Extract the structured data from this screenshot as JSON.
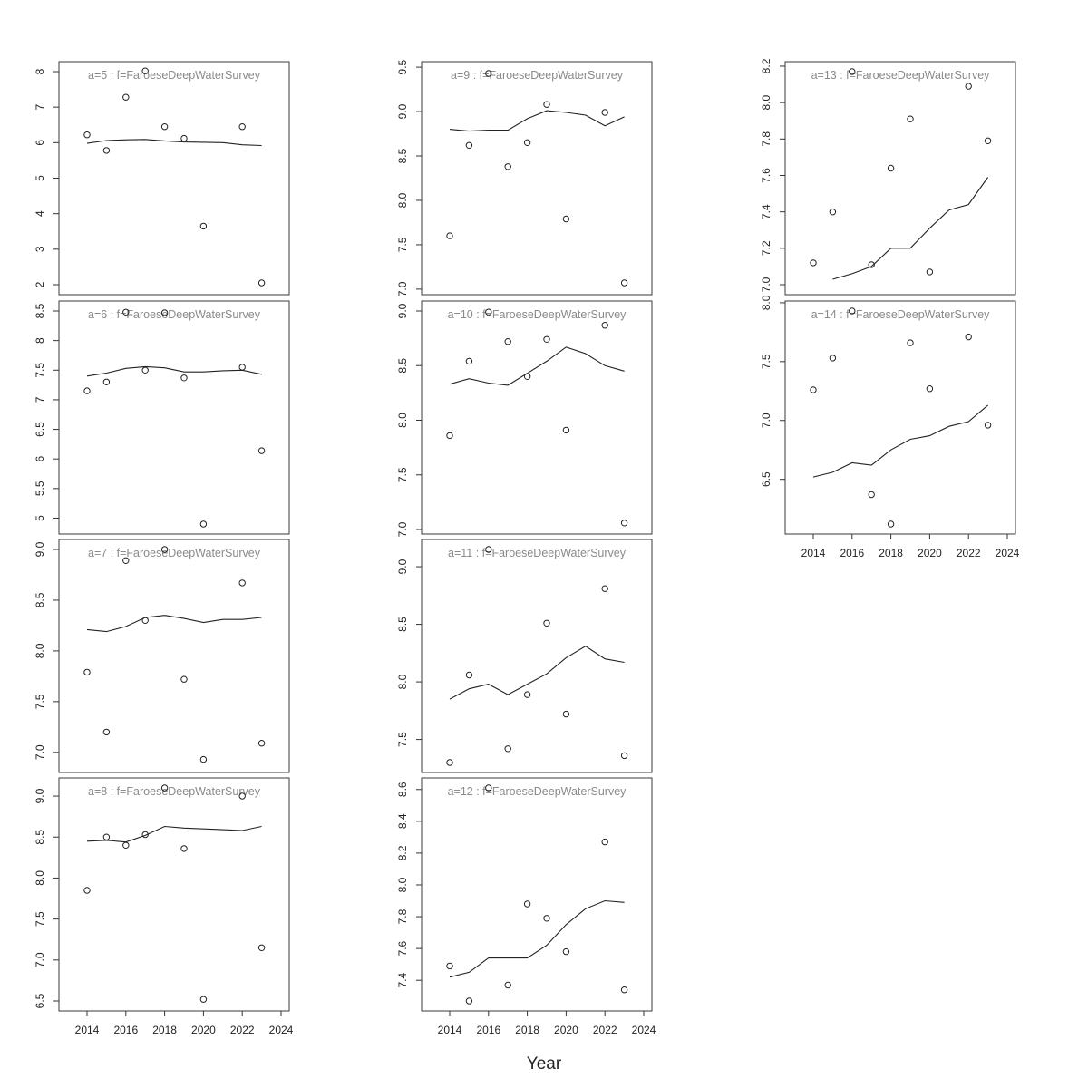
{
  "chart_data": {
    "type": "scatter",
    "xlabel": "Year",
    "panels": [
      {
        "label": "a=5  :  f=FaroeseDeepWaterSurvey",
        "ylim": [
          2,
          8
        ],
        "yticks": [
          2,
          3,
          4,
          5,
          6,
          7,
          8
        ],
        "show_xaxis": false,
        "points": [
          [
            2014,
            6.22
          ],
          [
            2015,
            5.78
          ],
          [
            2016,
            7.28
          ],
          [
            2017,
            8.02
          ],
          [
            2018,
            6.45
          ],
          [
            2019,
            6.12
          ],
          [
            2020,
            3.65
          ],
          [
            2022,
            6.45
          ],
          [
            2023,
            2.05
          ]
        ],
        "fit": [
          [
            2014,
            5.98
          ],
          [
            2015,
            6.06
          ],
          [
            2016,
            6.08
          ],
          [
            2017,
            6.09
          ],
          [
            2018,
            6.05
          ],
          [
            2019,
            6.02
          ],
          [
            2020,
            6.01
          ],
          [
            2021,
            6.0
          ],
          [
            2022,
            5.94
          ],
          [
            2023,
            5.92
          ]
        ]
      },
      {
        "label": "a=6  :  f=FaroeseDeepWaterSurvey",
        "ylim": [
          4.9,
          8.5
        ],
        "yticks": [
          5.0,
          5.5,
          6.0,
          6.5,
          7.0,
          7.5,
          8.0,
          8.5
        ],
        "show_xaxis": false,
        "points": [
          [
            2014,
            7.15
          ],
          [
            2015,
            7.3
          ],
          [
            2016,
            8.48
          ],
          [
            2017,
            7.5
          ],
          [
            2018,
            8.47
          ],
          [
            2019,
            7.37
          ],
          [
            2020,
            4.9
          ],
          [
            2022,
            7.55
          ],
          [
            2023,
            6.14
          ]
        ],
        "fit": [
          [
            2014,
            7.4
          ],
          [
            2015,
            7.45
          ],
          [
            2016,
            7.53
          ],
          [
            2017,
            7.56
          ],
          [
            2018,
            7.54
          ],
          [
            2019,
            7.47
          ],
          [
            2020,
            7.47
          ],
          [
            2021,
            7.49
          ],
          [
            2022,
            7.5
          ],
          [
            2023,
            7.43
          ]
        ]
      },
      {
        "label": "a=7  :  f=FaroeseDeepWaterSurvey",
        "ylim": [
          6.9,
          9.0
        ],
        "yticks": [
          7.0,
          7.5,
          8.0,
          8.5,
          9.0
        ],
        "show_xaxis": false,
        "points": [
          [
            2014,
            7.79
          ],
          [
            2015,
            7.2
          ],
          [
            2016,
            8.89
          ],
          [
            2017,
            8.3
          ],
          [
            2018,
            9.0
          ],
          [
            2019,
            7.72
          ],
          [
            2020,
            6.93
          ],
          [
            2022,
            8.67
          ],
          [
            2023,
            7.09
          ]
        ],
        "fit": [
          [
            2014,
            8.21
          ],
          [
            2015,
            8.19
          ],
          [
            2016,
            8.24
          ],
          [
            2017,
            8.33
          ],
          [
            2018,
            8.35
          ],
          [
            2019,
            8.32
          ],
          [
            2020,
            8.28
          ],
          [
            2021,
            8.31
          ],
          [
            2022,
            8.31
          ],
          [
            2023,
            8.33
          ]
        ]
      },
      {
        "label": "a=8  :  f=FaroeseDeepWaterSurvey",
        "ylim": [
          6.5,
          9.1
        ],
        "yticks": [
          6.5,
          7.0,
          7.5,
          8.0,
          8.5,
          9.0
        ],
        "show_xaxis": true,
        "points": [
          [
            2014,
            7.85
          ],
          [
            2015,
            8.5
          ],
          [
            2016,
            8.4
          ],
          [
            2017,
            8.53
          ],
          [
            2018,
            9.1
          ],
          [
            2019,
            8.36
          ],
          [
            2020,
            6.52
          ],
          [
            2022,
            9.0
          ],
          [
            2023,
            7.15
          ]
        ],
        "fit": [
          [
            2014,
            8.45
          ],
          [
            2015,
            8.46
          ],
          [
            2016,
            8.44
          ],
          [
            2017,
            8.52
          ],
          [
            2018,
            8.63
          ],
          [
            2019,
            8.61
          ],
          [
            2020,
            8.6
          ],
          [
            2021,
            8.59
          ],
          [
            2022,
            8.58
          ],
          [
            2023,
            8.63
          ]
        ]
      },
      {
        "label": "a=9  :  f=FaroeseDeepWaterSurvey",
        "ylim": [
          7.05,
          9.45
        ],
        "yticks": [
          7.0,
          7.5,
          8.0,
          8.5,
          9.0,
          9.5
        ],
        "show_xaxis": false,
        "points": [
          [
            2014,
            7.6
          ],
          [
            2015,
            8.62
          ],
          [
            2016,
            9.43
          ],
          [
            2017,
            8.38
          ],
          [
            2018,
            8.65
          ],
          [
            2019,
            9.08
          ],
          [
            2020,
            7.79
          ],
          [
            2022,
            8.99
          ],
          [
            2023,
            7.07
          ]
        ],
        "fit": [
          [
            2014,
            8.8
          ],
          [
            2015,
            8.78
          ],
          [
            2016,
            8.79
          ],
          [
            2017,
            8.79
          ],
          [
            2018,
            8.92
          ],
          [
            2019,
            9.01
          ],
          [
            2020,
            8.99
          ],
          [
            2021,
            8.96
          ],
          [
            2022,
            8.84
          ],
          [
            2023,
            8.94
          ]
        ]
      },
      {
        "label": "a=10  :  f=FaroeseDeepWaterSurvey",
        "ylim": [
          7.05,
          9.0
        ],
        "yticks": [
          7.0,
          7.5,
          8.0,
          8.5,
          9.0
        ],
        "show_xaxis": false,
        "points": [
          [
            2014,
            7.86
          ],
          [
            2015,
            8.54
          ],
          [
            2016,
            8.99
          ],
          [
            2017,
            8.72
          ],
          [
            2018,
            8.4
          ],
          [
            2019,
            8.74
          ],
          [
            2020,
            7.91
          ],
          [
            2022,
            8.87
          ],
          [
            2023,
            7.06
          ]
        ],
        "fit": [
          [
            2014,
            8.33
          ],
          [
            2015,
            8.38
          ],
          [
            2016,
            8.34
          ],
          [
            2017,
            8.32
          ],
          [
            2018,
            8.43
          ],
          [
            2019,
            8.54
          ],
          [
            2020,
            8.67
          ],
          [
            2021,
            8.61
          ],
          [
            2022,
            8.5
          ],
          [
            2023,
            8.45
          ]
        ]
      },
      {
        "label": "a=11  :  f=FaroeseDeepWaterSurvey",
        "ylim": [
          7.3,
          9.15
        ],
        "yticks": [
          7.5,
          8.0,
          8.5,
          9.0
        ],
        "show_xaxis": false,
        "points": [
          [
            2014,
            7.3
          ],
          [
            2015,
            8.06
          ],
          [
            2016,
            9.15
          ],
          [
            2017,
            7.42
          ],
          [
            2018,
            7.89
          ],
          [
            2019,
            8.51
          ],
          [
            2020,
            7.72
          ],
          [
            2022,
            8.81
          ],
          [
            2023,
            7.36
          ]
        ],
        "fit": [
          [
            2014,
            7.85
          ],
          [
            2015,
            7.94
          ],
          [
            2016,
            7.98
          ],
          [
            2017,
            7.89
          ],
          [
            2018,
            7.98
          ],
          [
            2019,
            8.07
          ],
          [
            2020,
            8.21
          ],
          [
            2021,
            8.31
          ],
          [
            2022,
            8.2
          ],
          [
            2023,
            8.17
          ]
        ]
      },
      {
        "label": "a=12  :  f=FaroeseDeepWaterSurvey",
        "ylim": [
          7.27,
          8.61
        ],
        "yticks": [
          7.4,
          7.6,
          7.8,
          8.0,
          8.2,
          8.4,
          8.6
        ],
        "show_xaxis": true,
        "points": [
          [
            2014,
            7.49
          ],
          [
            2015,
            7.27
          ],
          [
            2016,
            8.61
          ],
          [
            2017,
            7.37
          ],
          [
            2018,
            7.88
          ],
          [
            2019,
            7.79
          ],
          [
            2020,
            7.58
          ],
          [
            2022,
            8.27
          ],
          [
            2023,
            7.34
          ]
        ],
        "fit": [
          [
            2014,
            7.42
          ],
          [
            2015,
            7.45
          ],
          [
            2016,
            7.54
          ],
          [
            2017,
            7.54
          ],
          [
            2018,
            7.54
          ],
          [
            2019,
            7.62
          ],
          [
            2020,
            7.75
          ],
          [
            2021,
            7.85
          ],
          [
            2022,
            7.9
          ],
          [
            2023,
            7.89
          ]
        ]
      },
      {
        "label": "a=13  :  f=FaroeseDeepWaterSurvey",
        "ylim": [
          7.0,
          8.17
        ],
        "yticks": [
          7.0,
          7.2,
          7.4,
          7.6,
          7.8,
          8.0,
          8.2
        ],
        "show_xaxis": false,
        "points": [
          [
            2014,
            7.12
          ],
          [
            2015,
            7.4
          ],
          [
            2016,
            8.17
          ],
          [
            2017,
            7.11
          ],
          [
            2018,
            7.64
          ],
          [
            2019,
            7.91
          ],
          [
            2020,
            7.07
          ],
          [
            2022,
            8.09
          ],
          [
            2023,
            7.79
          ]
        ],
        "fit": [
          [
            2015,
            7.03
          ],
          [
            2016,
            7.06
          ],
          [
            2017,
            7.1
          ],
          [
            2018,
            7.2
          ],
          [
            2019,
            7.2
          ],
          [
            2020,
            7.31
          ],
          [
            2021,
            7.41
          ],
          [
            2022,
            7.44
          ],
          [
            2023,
            7.59
          ]
        ]
      },
      {
        "label": "a=14  :  f=FaroeseDeepWaterSurvey",
        "ylim": [
          6.12,
          7.93
        ],
        "yticks": [
          6.5,
          7.0,
          7.5,
          8.0
        ],
        "show_xaxis": true,
        "points": [
          [
            2014,
            7.26
          ],
          [
            2015,
            7.53
          ],
          [
            2016,
            7.93
          ],
          [
            2017,
            6.37
          ],
          [
            2018,
            6.12
          ],
          [
            2019,
            7.66
          ],
          [
            2020,
            7.27
          ],
          [
            2022,
            7.71
          ],
          [
            2023,
            6.96
          ]
        ],
        "fit": [
          [
            2014,
            6.52
          ],
          [
            2015,
            6.56
          ],
          [
            2016,
            6.64
          ],
          [
            2017,
            6.62
          ],
          [
            2018,
            6.75
          ],
          [
            2019,
            6.84
          ],
          [
            2020,
            6.87
          ],
          [
            2021,
            6.95
          ],
          [
            2022,
            6.99
          ],
          [
            2023,
            7.13
          ]
        ]
      }
    ],
    "x_ticks": [
      2014,
      2016,
      2018,
      2020,
      2022,
      2024
    ],
    "xlim": [
      2013.6,
      2023.4
    ]
  }
}
